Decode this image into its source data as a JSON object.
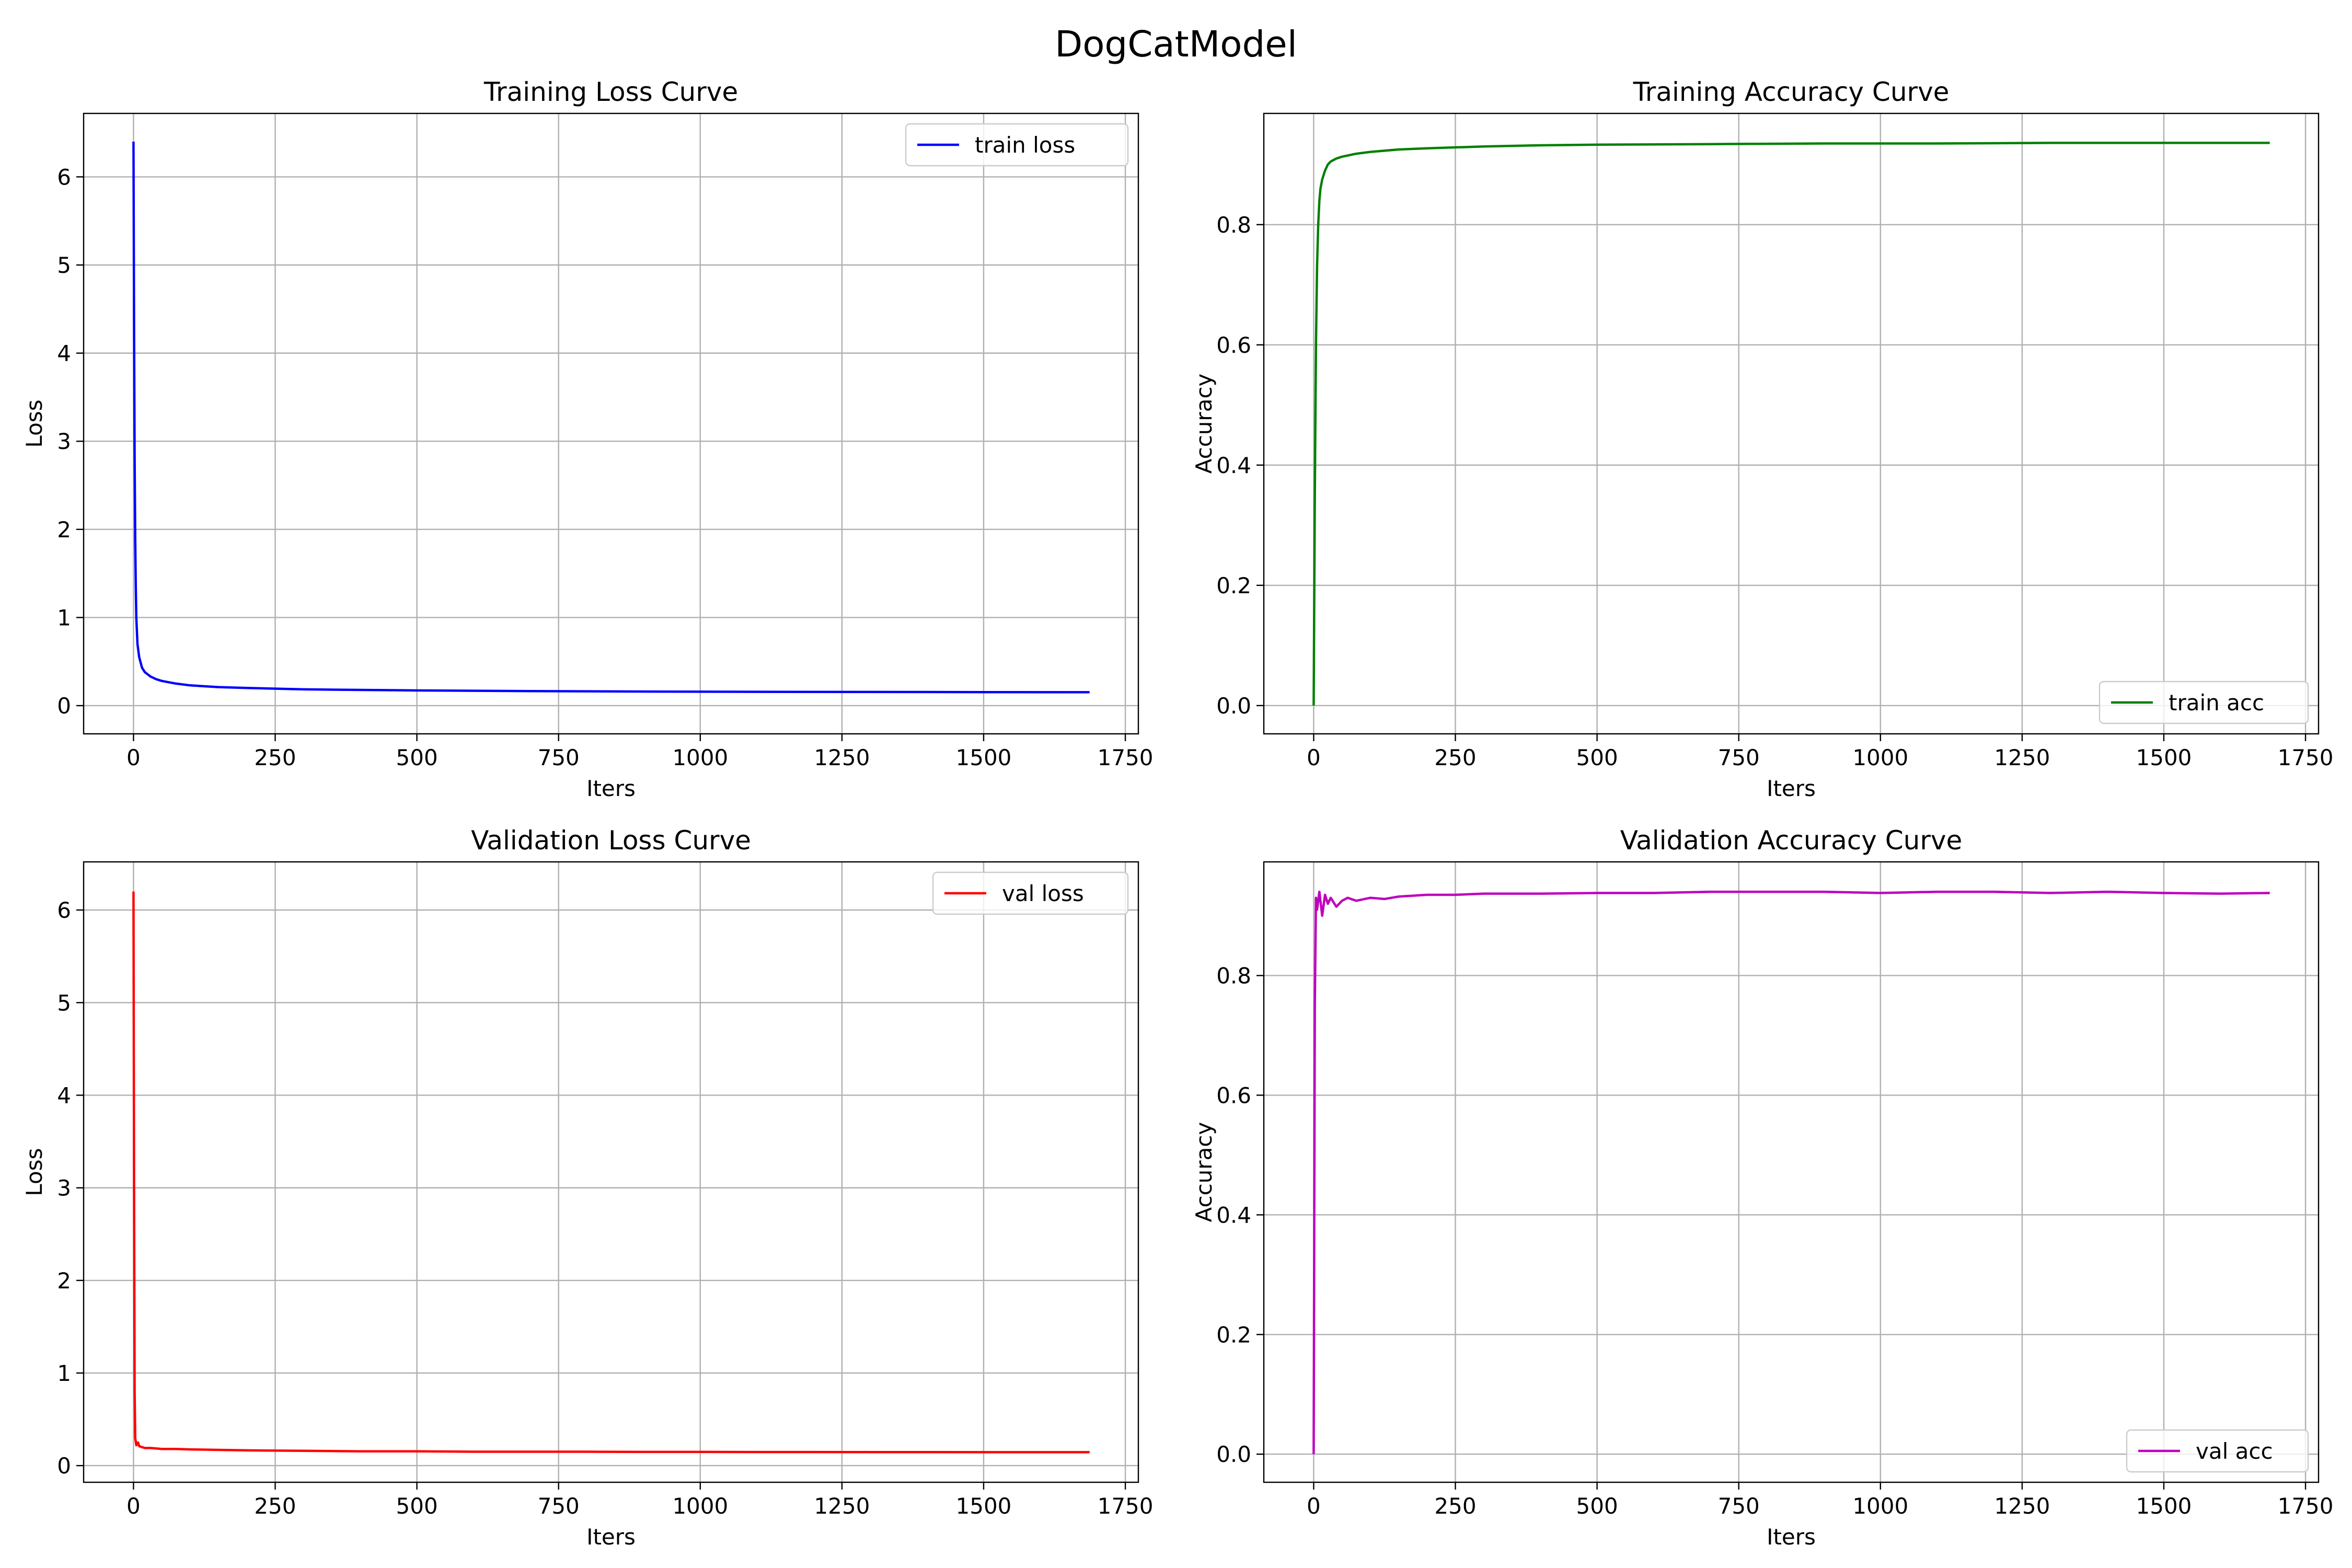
{
  "figure": {
    "suptitle": "DogCatModel"
  },
  "chart_data": [
    {
      "type": "line",
      "id": "train_loss",
      "title": "Training Loss Curve",
      "xlabel": "Iters",
      "ylabel": "Loss",
      "xlim": [
        -88,
        1773
      ],
      "ylim": [
        -0.32,
        6.72
      ],
      "xticks": [
        0,
        250,
        500,
        750,
        1000,
        1250,
        1500,
        1750
      ],
      "yticks": [
        0,
        1,
        2,
        3,
        4,
        5,
        6
      ],
      "grid": true,
      "legend_position": "upper right",
      "series": [
        {
          "name": "train loss",
          "color": "#0000ff",
          "x": [
            0,
            1,
            2,
            3,
            4,
            5,
            7,
            10,
            15,
            20,
            30,
            40,
            50,
            75,
            100,
            150,
            200,
            300,
            400,
            500,
            700,
            900,
            1100,
            1300,
            1500,
            1687
          ],
          "y": [
            6.4,
            4.3,
            2.8,
            1.9,
            1.35,
            1.0,
            0.7,
            0.55,
            0.43,
            0.38,
            0.33,
            0.3,
            0.28,
            0.25,
            0.23,
            0.21,
            0.2,
            0.185,
            0.178,
            0.172,
            0.165,
            0.16,
            0.157,
            0.155,
            0.153,
            0.152
          ]
        }
      ]
    },
    {
      "type": "line",
      "id": "train_acc",
      "title": "Training Accuracy Curve",
      "xlabel": "Iters",
      "ylabel": "Accuracy",
      "xlim": [
        -88,
        1773
      ],
      "ylim": [
        -0.047,
        0.985
      ],
      "xticks": [
        0,
        250,
        500,
        750,
        1000,
        1250,
        1500,
        1750
      ],
      "yticks": [
        0.0,
        0.2,
        0.4,
        0.6,
        0.8
      ],
      "grid": true,
      "legend_position": "lower right",
      "series": [
        {
          "name": "train acc",
          "color": "#008000",
          "x": [
            0,
            2,
            4,
            6,
            8,
            10,
            12,
            15,
            20,
            25,
            30,
            40,
            50,
            75,
            100,
            150,
            200,
            300,
            400,
            500,
            700,
            900,
            1100,
            1300,
            1500,
            1687
          ],
          "y": [
            0.0,
            0.35,
            0.6,
            0.73,
            0.8,
            0.84,
            0.86,
            0.875,
            0.89,
            0.9,
            0.905,
            0.91,
            0.913,
            0.918,
            0.921,
            0.925,
            0.927,
            0.93,
            0.932,
            0.933,
            0.934,
            0.935,
            0.935,
            0.936,
            0.936,
            0.936
          ]
        }
      ]
    },
    {
      "type": "line",
      "id": "val_loss",
      "title": "Validation Loss Curve",
      "xlabel": "Iters",
      "ylabel": "Loss",
      "xlim": [
        -88,
        1773
      ],
      "ylim": [
        -0.18,
        6.52
      ],
      "xticks": [
        0,
        250,
        500,
        750,
        1000,
        1250,
        1500,
        1750
      ],
      "yticks": [
        0,
        1,
        2,
        3,
        4,
        5,
        6
      ],
      "grid": true,
      "legend_position": "upper right",
      "series": [
        {
          "name": "val loss",
          "color": "#ff0000",
          "x": [
            0,
            1,
            2,
            3,
            5,
            8,
            10,
            15,
            20,
            30,
            50,
            75,
            100,
            150,
            200,
            300,
            400,
            500,
            600,
            700,
            800,
            900,
            1000,
            1100,
            1200,
            1300,
            1400,
            1500,
            1600,
            1687
          ],
          "y": [
            6.2,
            3.0,
            0.8,
            0.3,
            0.22,
            0.25,
            0.21,
            0.2,
            0.19,
            0.19,
            0.18,
            0.18,
            0.175,
            0.17,
            0.165,
            0.16,
            0.155,
            0.155,
            0.15,
            0.15,
            0.15,
            0.148,
            0.148,
            0.147,
            0.147,
            0.146,
            0.146,
            0.145,
            0.145,
            0.145
          ]
        }
      ]
    },
    {
      "type": "line",
      "id": "val_acc",
      "title": "Validation Accuracy Curve",
      "xlabel": "Iters",
      "ylabel": "Accuracy",
      "xlim": [
        -88,
        1773
      ],
      "ylim": [
        -0.047,
        0.99
      ],
      "xticks": [
        0,
        250,
        500,
        750,
        1000,
        1250,
        1500,
        1750
      ],
      "yticks": [
        0.0,
        0.2,
        0.4,
        0.6,
        0.8
      ],
      "grid": true,
      "legend_position": "lower right",
      "series": [
        {
          "name": "val acc",
          "color": "#bf00bf",
          "x": [
            0,
            2,
            4,
            6,
            10,
            15,
            20,
            25,
            30,
            40,
            50,
            60,
            75,
            100,
            125,
            150,
            200,
            250,
            300,
            400,
            500,
            600,
            700,
            800,
            900,
            1000,
            1100,
            1200,
            1300,
            1400,
            1500,
            1600,
            1687
          ],
          "y": [
            0.0,
            0.75,
            0.93,
            0.91,
            0.94,
            0.9,
            0.935,
            0.92,
            0.93,
            0.915,
            0.925,
            0.93,
            0.925,
            0.93,
            0.928,
            0.932,
            0.935,
            0.935,
            0.937,
            0.937,
            0.938,
            0.938,
            0.94,
            0.94,
            0.94,
            0.938,
            0.94,
            0.94,
            0.938,
            0.94,
            0.938,
            0.937,
            0.938
          ]
        }
      ]
    }
  ]
}
